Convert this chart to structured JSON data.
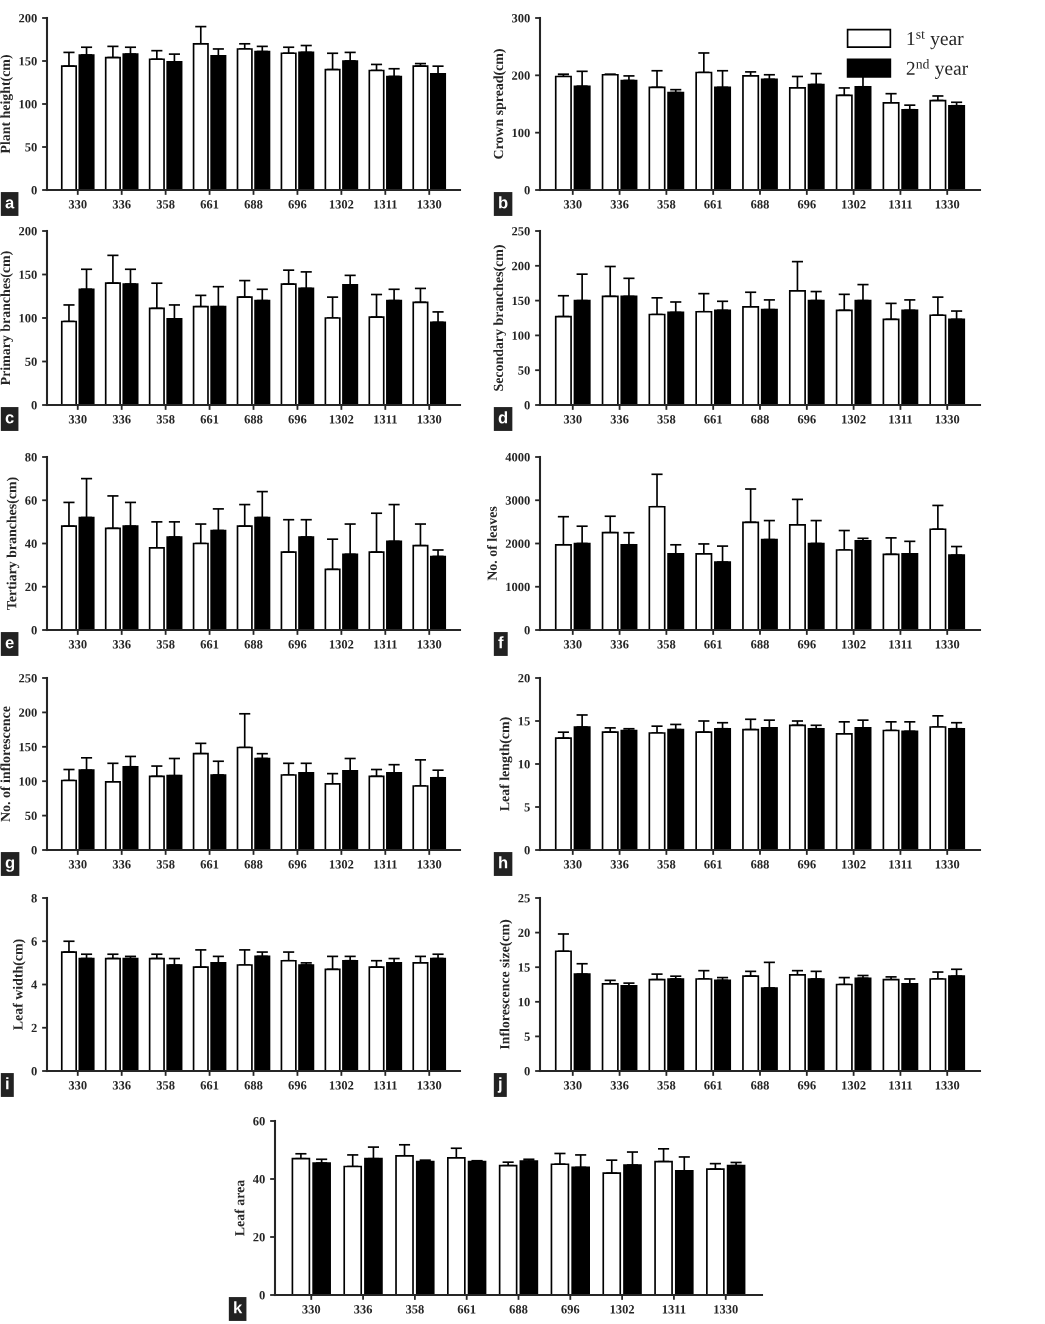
{
  "chart_data": [
    {
      "type": "bar",
      "ylabel": "Plant height(cm)",
      "categories": [
        "330",
        "336",
        "358",
        "661",
        "688",
        "696",
        "1302",
        "1311",
        "1330"
      ],
      "ylim": [
        0,
        200
      ],
      "yticks": [
        0,
        50,
        100,
        150,
        200
      ],
      "annotations": [
        "a"
      ],
      "series": [
        {
          "color": "#ffffff",
          "values": [
            144,
            154,
            152,
            170,
            164,
            159,
            140,
            139,
            144
          ],
          "errors": [
            [
              144,
              160
            ],
            [
              154,
              167
            ],
            [
              152,
              162
            ],
            [
              170,
              190
            ],
            [
              164,
              170
            ],
            [
              159,
              166
            ],
            [
              140,
              159
            ],
            [
              139,
              146
            ],
            [
              144,
              147
            ]
          ]
        },
        {
          "color": "#000000",
          "values": [
            157,
            158,
            149,
            156,
            161,
            160,
            150,
            132,
            135
          ],
          "errors": [
            [
              157,
              166
            ],
            [
              158,
              166
            ],
            [
              149,
              158
            ],
            [
              156,
              164
            ],
            [
              161,
              167
            ],
            [
              160,
              168
            ],
            [
              150,
              160
            ],
            [
              132,
              141
            ],
            [
              135,
              144
            ]
          ]
        }
      ]
    },
    {
      "type": "bar",
      "ylabel": "Crown spread(cm)",
      "categories": [
        "330",
        "336",
        "358",
        "661",
        "688",
        "696",
        "1302",
        "1311",
        "1330"
      ],
      "ylim": [
        0,
        300
      ],
      "yticks": [
        0,
        100,
        200,
        300
      ],
      "annotations": [
        "b"
      ],
      "legend": "top right",
      "series": [
        {
          "name": "1$^{st}$ year",
          "color": "#ffffff",
          "values": [
            198,
            201,
            179,
            205,
            199,
            178,
            165,
            152,
            156
          ],
          "errors": [
            [
              198,
              202
            ],
            [
              201,
              202
            ],
            [
              179,
              208
            ],
            [
              205,
              239
            ],
            [
              199,
              206
            ],
            [
              178,
              198
            ],
            [
              165,
              178
            ],
            [
              152,
              168
            ],
            [
              156,
              164
            ]
          ]
        },
        {
          "name": "2$^{nd}$ year",
          "color": "#000000",
          "values": [
            181,
            191,
            170,
            179,
            193,
            184,
            180,
            140,
            147
          ],
          "errors": [
            [
              181,
              207
            ],
            [
              191,
              199
            ],
            [
              170,
              175
            ],
            [
              179,
              208
            ],
            [
              193,
              201
            ],
            [
              184,
              203
            ],
            [
              180,
              199
            ],
            [
              140,
              148
            ],
            [
              147,
              153
            ]
          ]
        }
      ]
    },
    {
      "type": "bar",
      "ylabel": "Primary branches(cm)",
      "categories": [
        "330",
        "336",
        "358",
        "661",
        "688",
        "696",
        "1302",
        "1311",
        "1330"
      ],
      "ylim": [
        0,
        200
      ],
      "yticks": [
        0,
        50,
        100,
        150,
        200
      ],
      "annotations": [
        "c"
      ],
      "series": [
        {
          "color": "#ffffff",
          "values": [
            96,
            140,
            111,
            113,
            124,
            139,
            100,
            101,
            118
          ],
          "errors": [
            [
              96,
              115
            ],
            [
              140,
              172
            ],
            [
              111,
              140
            ],
            [
              113,
              126
            ],
            [
              124,
              143
            ],
            [
              139,
              155
            ],
            [
              100,
              124
            ],
            [
              101,
              127
            ],
            [
              118,
              134
            ]
          ]
        },
        {
          "color": "#000000",
          "values": [
            133,
            139,
            99,
            113,
            120,
            134,
            138,
            120,
            95
          ],
          "errors": [
            [
              133,
              156
            ],
            [
              139,
              156
            ],
            [
              99,
              115
            ],
            [
              113,
              136
            ],
            [
              120,
              133
            ],
            [
              134,
              153
            ],
            [
              138,
              149
            ],
            [
              120,
              133
            ],
            [
              95,
              107
            ]
          ]
        }
      ]
    },
    {
      "type": "bar",
      "ylabel": "Secondary branches(cm)",
      "categories": [
        "330",
        "336",
        "358",
        "661",
        "688",
        "696",
        "1302",
        "1311",
        "1330"
      ],
      "ylim": [
        0,
        250
      ],
      "yticks": [
        0,
        50,
        100,
        150,
        200,
        250
      ],
      "annotations": [
        "d"
      ],
      "series": [
        {
          "color": "#ffffff",
          "values": [
            127,
            156,
            130,
            134,
            141,
            164,
            136,
            123,
            129
          ],
          "errors": [
            [
              127,
              157
            ],
            [
              156,
              199
            ],
            [
              130,
              154
            ],
            [
              134,
              160
            ],
            [
              141,
              162
            ],
            [
              164,
              206
            ],
            [
              136,
              159
            ],
            [
              123,
              146
            ],
            [
              129,
              155
            ]
          ]
        },
        {
          "color": "#000000",
          "values": [
            150,
            156,
            133,
            136,
            137,
            150,
            150,
            136,
            123
          ],
          "errors": [
            [
              150,
              188
            ],
            [
              156,
              182
            ],
            [
              133,
              148
            ],
            [
              136,
              149
            ],
            [
              137,
              151
            ],
            [
              150,
              163
            ],
            [
              150,
              173
            ],
            [
              136,
              151
            ],
            [
              123,
              135
            ]
          ]
        }
      ]
    },
    {
      "type": "bar",
      "ylabel": "Tertiary branches(cm)",
      "categories": [
        "330",
        "336",
        "358",
        "661",
        "688",
        "696",
        "1302",
        "1311",
        "1330"
      ],
      "ylim": [
        0,
        80
      ],
      "yticks": [
        0,
        20,
        40,
        60,
        80
      ],
      "annotations": [
        "e"
      ],
      "series": [
        {
          "color": "#ffffff",
          "values": [
            48,
            47,
            38,
            40,
            48,
            36,
            28,
            36,
            39
          ],
          "errors": [
            [
              48,
              59
            ],
            [
              47,
              62
            ],
            [
              38,
              50
            ],
            [
              40,
              49
            ],
            [
              48,
              58
            ],
            [
              36,
              51
            ],
            [
              28,
              42
            ],
            [
              36,
              54
            ],
            [
              39,
              49
            ]
          ]
        },
        {
          "color": "#000000",
          "values": [
            52,
            48,
            43,
            46,
            52,
            43,
            35,
            41,
            34
          ],
          "errors": [
            [
              52,
              70
            ],
            [
              48,
              59
            ],
            [
              43,
              50
            ],
            [
              46,
              56
            ],
            [
              52,
              64
            ],
            [
              43,
              51
            ],
            [
              35,
              49
            ],
            [
              41,
              58
            ],
            [
              34,
              37
            ]
          ]
        }
      ]
    },
    {
      "type": "bar",
      "ylabel": "No. of leaves",
      "categories": [
        "330",
        "336",
        "358",
        "661",
        "688",
        "696",
        "1302",
        "1311",
        "1330"
      ],
      "ylim": [
        0,
        4000
      ],
      "yticks": [
        0,
        1000,
        2000,
        3000,
        4000
      ],
      "annotations": [
        "f"
      ],
      "series": [
        {
          "color": "#ffffff",
          "values": [
            1970,
            2250,
            2850,
            1760,
            2490,
            2430,
            1850,
            1750,
            2330
          ],
          "errors": [
            [
              1970,
              2620
            ],
            [
              2250,
              2630
            ],
            [
              2850,
              3600
            ],
            [
              1760,
              1990
            ],
            [
              2490,
              3260
            ],
            [
              2430,
              3020
            ],
            [
              1850,
              2300
            ],
            [
              1750,
              2130
            ],
            [
              2330,
              2880
            ]
          ]
        },
        {
          "color": "#000000",
          "values": [
            2000,
            1970,
            1760,
            1570,
            2090,
            2000,
            2060,
            1760,
            1730
          ],
          "errors": [
            [
              2000,
              2400
            ],
            [
              1970,
              2250
            ],
            [
              1760,
              1970
            ],
            [
              1570,
              1940
            ],
            [
              2090,
              2530
            ],
            [
              2000,
              2530
            ],
            [
              2060,
              2120
            ],
            [
              1760,
              2050
            ],
            [
              1730,
              1930
            ]
          ]
        }
      ]
    },
    {
      "type": "bar",
      "ylabel": "No. of inflorescence",
      "categories": [
        "330",
        "336",
        "358",
        "661",
        "688",
        "696",
        "1302",
        "1311",
        "1330"
      ],
      "ylim": [
        0,
        250
      ],
      "yticks": [
        0,
        50,
        100,
        150,
        200,
        250
      ],
      "annotations": [
        "g"
      ],
      "series": [
        {
          "color": "#ffffff",
          "values": [
            101,
            99,
            107,
            140,
            149,
            109,
            96,
            107,
            93
          ],
          "errors": [
            [
              101,
              117
            ],
            [
              99,
              126
            ],
            [
              107,
              122
            ],
            [
              140,
              155
            ],
            [
              149,
              198
            ],
            [
              109,
              126
            ],
            [
              96,
              111
            ],
            [
              107,
              117
            ],
            [
              93,
              131
            ]
          ]
        },
        {
          "color": "#000000",
          "values": [
            116,
            121,
            108,
            109,
            133,
            112,
            115,
            112,
            105
          ],
          "errors": [
            [
              116,
              134
            ],
            [
              121,
              136
            ],
            [
              108,
              133
            ],
            [
              109,
              129
            ],
            [
              133,
              140
            ],
            [
              112,
              126
            ],
            [
              115,
              133
            ],
            [
              112,
              124
            ],
            [
              105,
              116
            ]
          ]
        }
      ]
    },
    {
      "type": "bar",
      "ylabel": "Leaf length(cm)",
      "categories": [
        "330",
        "336",
        "358",
        "661",
        "688",
        "696",
        "1302",
        "1311",
        "1330"
      ],
      "ylim": [
        0,
        20
      ],
      "yticks": [
        0,
        5,
        10,
        15,
        20
      ],
      "annotations": [
        "h"
      ],
      "series": [
        {
          "color": "#ffffff",
          "values": [
            13.0,
            13.7,
            13.6,
            13.7,
            14.0,
            14.5,
            13.5,
            13.9,
            14.3
          ],
          "errors": [
            [
              13.0,
              13.7
            ],
            [
              13.7,
              14.2
            ],
            [
              13.6,
              14.4
            ],
            [
              13.7,
              15.0
            ],
            [
              14.0,
              15.2
            ],
            [
              14.5,
              15.0
            ],
            [
              13.5,
              14.9
            ],
            [
              13.9,
              14.9
            ],
            [
              14.3,
              15.6
            ]
          ]
        },
        {
          "color": "#000000",
          "values": [
            14.3,
            13.9,
            14.0,
            14.1,
            14.2,
            14.1,
            14.2,
            13.8,
            14.1
          ],
          "errors": [
            [
              14.3,
              15.7
            ],
            [
              13.9,
              14.1
            ],
            [
              14.0,
              14.6
            ],
            [
              14.1,
              14.8
            ],
            [
              14.2,
              15.1
            ],
            [
              14.1,
              14.5
            ],
            [
              14.2,
              15.1
            ],
            [
              13.8,
              14.9
            ],
            [
              14.1,
              14.8
            ]
          ]
        }
      ]
    },
    {
      "type": "bar",
      "ylabel": "Leaf width(cm)",
      "categories": [
        "330",
        "336",
        "358",
        "661",
        "688",
        "696",
        "1302",
        "1311",
        "1330"
      ],
      "ylim": [
        0,
        8
      ],
      "yticks": [
        0,
        2,
        4,
        6,
        8
      ],
      "annotations": [
        "i"
      ],
      "series": [
        {
          "color": "#ffffff",
          "values": [
            5.5,
            5.2,
            5.2,
            4.8,
            4.9,
            5.1,
            4.7,
            4.8,
            5.0
          ],
          "errors": [
            [
              5.5,
              6.0
            ],
            [
              5.2,
              5.4
            ],
            [
              5.2,
              5.4
            ],
            [
              4.8,
              5.6
            ],
            [
              4.9,
              5.6
            ],
            [
              5.1,
              5.5
            ],
            [
              4.7,
              5.3
            ],
            [
              4.8,
              5.1
            ],
            [
              5.0,
              5.3
            ]
          ]
        },
        {
          "color": "#000000",
          "values": [
            5.2,
            5.2,
            4.9,
            5.0,
            5.3,
            4.9,
            5.1,
            5.0,
            5.2
          ],
          "errors": [
            [
              5.2,
              5.4
            ],
            [
              5.2,
              5.3
            ],
            [
              4.9,
              5.2
            ],
            [
              5.0,
              5.3
            ],
            [
              5.3,
              5.5
            ],
            [
              4.9,
              5.0
            ],
            [
              5.1,
              5.3
            ],
            [
              5.0,
              5.2
            ],
            [
              5.2,
              5.4
            ]
          ]
        }
      ]
    },
    {
      "type": "bar",
      "ylabel": "Inflorescence size(cm)",
      "categories": [
        "330",
        "336",
        "358",
        "661",
        "688",
        "696",
        "1302",
        "1311",
        "1330"
      ],
      "ylim": [
        0,
        25
      ],
      "yticks": [
        0,
        5,
        10,
        15,
        20,
        25
      ],
      "annotations": [
        "j"
      ],
      "series": [
        {
          "color": "#ffffff",
          "values": [
            17.3,
            12.6,
            13.2,
            13.3,
            13.7,
            13.9,
            12.5,
            13.2,
            13.3
          ],
          "errors": [
            [
              17.3,
              19.8
            ],
            [
              12.6,
              13.1
            ],
            [
              13.2,
              14.0
            ],
            [
              13.3,
              14.5
            ],
            [
              13.7,
              14.4
            ],
            [
              13.9,
              14.5
            ],
            [
              12.5,
              13.5
            ],
            [
              13.2,
              13.6
            ],
            [
              13.3,
              14.3
            ]
          ]
        },
        {
          "color": "#000000",
          "values": [
            14.0,
            12.3,
            13.3,
            13.1,
            12.0,
            13.3,
            13.4,
            12.6,
            13.7
          ],
          "errors": [
            [
              14.0,
              15.5
            ],
            [
              12.3,
              12.7
            ],
            [
              13.3,
              13.7
            ],
            [
              13.1,
              13.5
            ],
            [
              12.0,
              15.7
            ],
            [
              13.3,
              14.4
            ],
            [
              13.4,
              13.8
            ],
            [
              12.6,
              13.3
            ],
            [
              13.7,
              14.7
            ]
          ]
        }
      ]
    },
    {
      "type": "bar",
      "ylabel": "Leaf area",
      "categories": [
        "330",
        "336",
        "358",
        "661",
        "688",
        "696",
        "1302",
        "1311",
        "1330"
      ],
      "ylim": [
        0,
        60
      ],
      "yticks": [
        0,
        20,
        40,
        60
      ],
      "annotations": [
        "k"
      ],
      "series": [
        {
          "color": "#ffffff",
          "values": [
            47,
            44.3,
            48,
            47.3,
            44.6,
            45.1,
            42,
            46,
            43.4
          ],
          "errors": [
            [
              47,
              48.7
            ],
            [
              44.3,
              48.3
            ],
            [
              48,
              51.8
            ],
            [
              47.3,
              50.6
            ],
            [
              44.6,
              45.8
            ],
            [
              45.1,
              48.8
            ],
            [
              42,
              46.5
            ],
            [
              46,
              50.4
            ],
            [
              43.4,
              45.3
            ]
          ]
        },
        {
          "color": "#000000",
          "values": [
            45.5,
            47,
            46,
            46,
            46.2,
            44,
            44.8,
            42.8,
            44.6
          ],
          "errors": [
            [
              45.5,
              46.8
            ],
            [
              47,
              51
            ],
            [
              46,
              46.5
            ],
            [
              46,
              46.3
            ],
            [
              46.2,
              46.8
            ],
            [
              44,
              48.3
            ],
            [
              44.8,
              49.3
            ],
            [
              42.8,
              47.6
            ],
            [
              44.6,
              45.7
            ]
          ]
        }
      ]
    }
  ]
}
